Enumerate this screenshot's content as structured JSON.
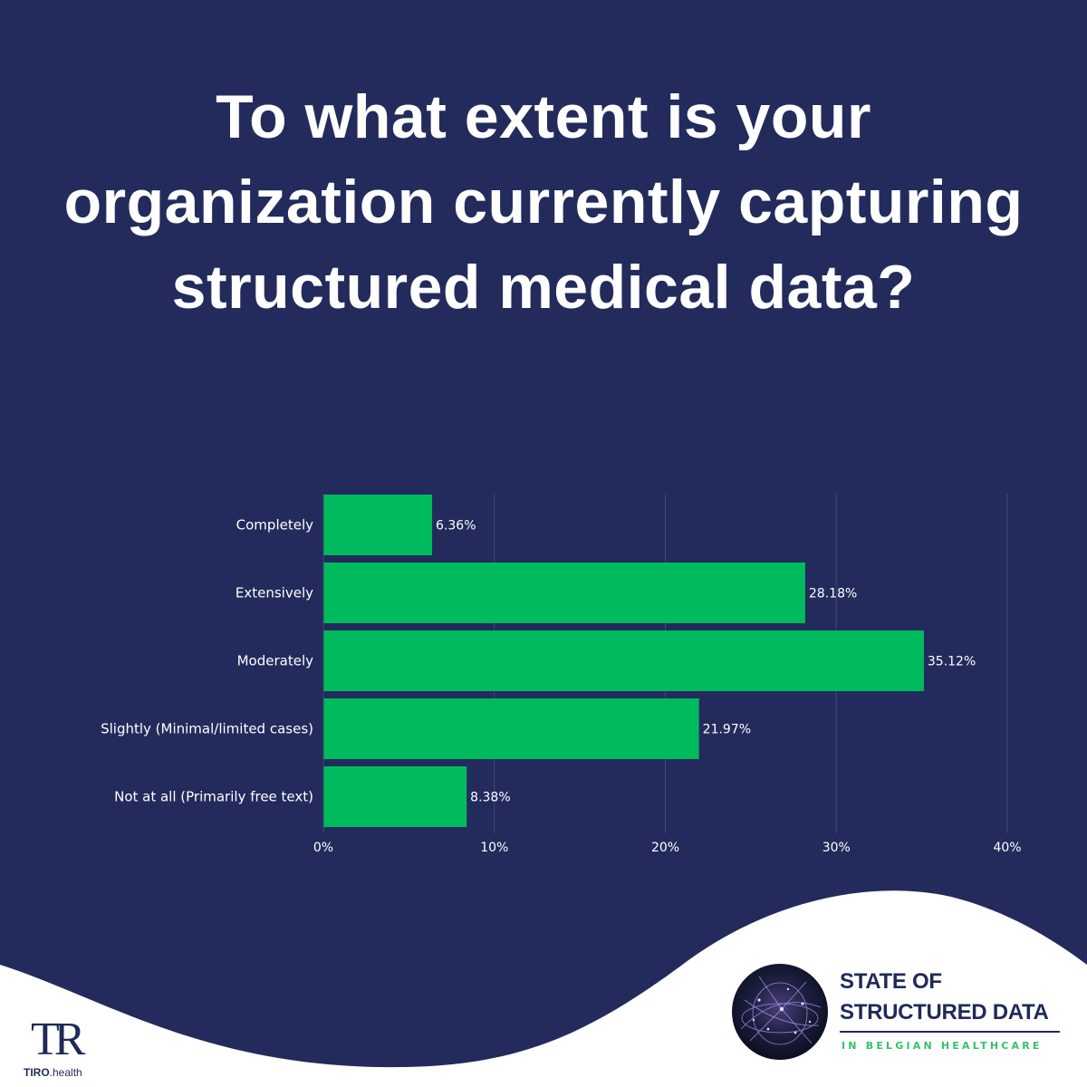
{
  "header": {
    "title": "To what extent is your organization currently capturing structured medical data?"
  },
  "chart_data": {
    "type": "bar",
    "orientation": "horizontal",
    "categories": [
      "Completely",
      "Extensively",
      "Moderately",
      "Slightly (Minimal/limited cases)",
      "Not at all (Primarily free text)"
    ],
    "values": [
      6.36,
      28.18,
      35.12,
      21.97,
      8.38
    ],
    "value_labels": [
      "6.36%",
      "28.18%",
      "35.12%",
      "21.97%",
      "8.38%"
    ],
    "x_ticks": [
      "0%",
      "10%",
      "20%",
      "30%",
      "40%"
    ],
    "xlim": [
      0,
      40
    ],
    "title": "",
    "xlabel": "",
    "ylabel": "",
    "grid": true,
    "legend": "none",
    "bar_color": "#00bb5e"
  },
  "branding": {
    "report_line1": "STATE OF",
    "report_line2": "STRUCTURED DATA",
    "report_sub": "IN BELGIAN HEALTHCARE",
    "company_mark": "TR",
    "company_name": "TIRO",
    "company_suffix": ".health"
  },
  "colors": {
    "background": "#232b5c",
    "bar": "#00bb5e",
    "footer_wave": "#ffffff",
    "brand_navy": "#1f2a5a",
    "brand_green": "#36c26a"
  },
  "icons": {
    "report_logo": "network-globe-icon",
    "company_logo": "tiro-logo-icon"
  }
}
